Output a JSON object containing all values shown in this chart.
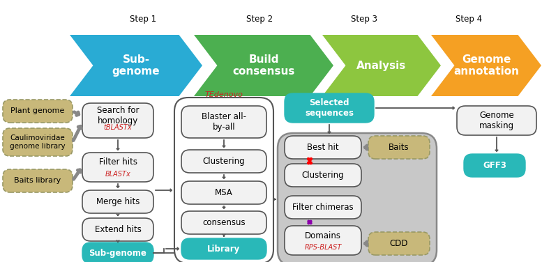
{
  "fig_width": 7.77,
  "fig_height": 3.76,
  "bg_color": "#ffffff",
  "teal_color": "#29B8B8",
  "chevron1_color": "#29ABD4",
  "chevron2_color": "#4CAF50",
  "chevron3_color": "#8DC63F",
  "chevron4_color": "#F5A023",
  "dashed_fill": "#c8b87a",
  "dashed_edge": "#999966",
  "gray_bg": "#c8c8c8",
  "white_box_fill": "#f2f2f2",
  "white_box_edge": "#555555",
  "step1_label": "Step 1",
  "step2_label": "Step 2",
  "step3_label": "Step 3",
  "step4_label": "Step 4",
  "chev1_text": "Sub-\ngenome",
  "chev2_text": "Build\nconsensus",
  "chev3_text": "Analysis",
  "chev4_text": "Genome\nannotation"
}
